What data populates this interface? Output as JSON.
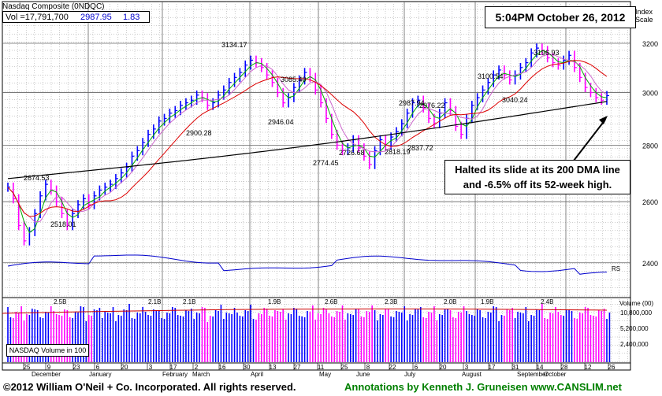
{
  "header": {
    "name": "Nasdaq Composite",
    "symbol": "(0NDQC)",
    "vol_label": "Vol =17,791,700",
    "price": "2987.95",
    "change": "1.83"
  },
  "timestamp": "5:04PM October 26, 2012",
  "index_scale_label": "Index\nScale",
  "annotation_note": "Halted its slide at its 200 DMA line and -6.5% off its 52-week high.",
  "rs_label": "RS",
  "volume_box_label": "NASDAQ Volume in 100",
  "volume_axis_title": "Volume (00)",
  "footer": {
    "copyright": "©2012 William O'Neil + Co. Incorporated. All rights reserved.",
    "annotations": "Annotations by Kenneth J. Gruneisen www.CANSLIM.net"
  },
  "colors": {
    "up": "#0000ff",
    "down": "#ff00ff",
    "ma10": "#00aa00",
    "ma20": "#cc66cc",
    "ma50": "#dd0000",
    "ma200": "#000000",
    "rs": "#0000cc",
    "volAvg": "#cc0000",
    "grid": "#999999"
  },
  "chart_data": {
    "type": "line",
    "title": "Nasdaq Composite (0NDQC)",
    "price_axis": {
      "scale": "log",
      "ticks": [
        2400,
        2600,
        2800,
        3000,
        3200
      ],
      "range": [
        2300,
        3380
      ]
    },
    "volume_axis": {
      "ticks": [
        "10,800,000",
        "5,200,000",
        "2,400,000"
      ],
      "max_mid": "10,800,000"
    },
    "x_tick_labels": [
      "25",
      "9",
      "23",
      "6",
      "20",
      "3",
      "17",
      "2",
      "16",
      "30",
      "13",
      "27",
      "11",
      "25",
      "8",
      "22",
      "6",
      "20",
      "3",
      "17",
      "31",
      "14",
      "28",
      "12",
      "26"
    ],
    "month_labels": [
      "December",
      "January",
      "February",
      "March",
      "April",
      "May",
      "June",
      "July",
      "August",
      "September",
      "October"
    ],
    "price_labels": [
      {
        "text": "2674.53",
        "value": 2674.53
      },
      {
        "text": "2518.01",
        "value": 2518.01
      },
      {
        "text": "2900.28",
        "value": 2900.28
      },
      {
        "text": "3134.17",
        "value": 3134.17
      },
      {
        "text": "3085.40",
        "value": 3085.4
      },
      {
        "text": "2946.04",
        "value": 2946.04
      },
      {
        "text": "2774.45",
        "value": 2774.45
      },
      {
        "text": "2726.68",
        "value": 2726.68
      },
      {
        "text": "2818.19",
        "value": 2818.19
      },
      {
        "text": "2987.94",
        "value": 2987.94
      },
      {
        "text": "2976.22",
        "value": 2976.22
      },
      {
        "text": "2837.72",
        "value": 2837.72
      },
      {
        "text": "3100.54",
        "value": 3100.54
      },
      {
        "text": "3040.24",
        "value": 3040.24
      },
      {
        "text": "3196.93",
        "value": 3196.93
      }
    ],
    "volume_labels": [
      "2.5B",
      "2.1B",
      "2.1B",
      "1.9B",
      "2.6B",
      "2.3B",
      "2.0B",
      "1.9B",
      "2.4B"
    ],
    "close_series": [
      2650,
      2610,
      2520,
      2470,
      2500,
      2560,
      2620,
      2660,
      2640,
      2600,
      2560,
      2520,
      2560,
      2590,
      2610,
      2590,
      2620,
      2640,
      2650,
      2660,
      2680,
      2700,
      2720,
      2760,
      2780,
      2810,
      2840,
      2860,
      2890,
      2900,
      2920,
      2930,
      2950,
      2960,
      2970,
      2990,
      2980,
      2950,
      2960,
      2990,
      3010,
      3040,
      3060,
      3080,
      3110,
      3130,
      3120,
      3100,
      3070,
      3040,
      3000,
      2960,
      2980,
      3020,
      3050,
      3080,
      3060,
      3010,
      2960,
      2900,
      2840,
      2800,
      2780,
      2790,
      2820,
      2790,
      2760,
      2730,
      2780,
      2820,
      2800,
      2830,
      2850,
      2880,
      2920,
      2960,
      2970,
      2940,
      2900,
      2880,
      2920,
      2960,
      2930,
      2870,
      2840,
      2900,
      2950,
      2980,
      3010,
      3040,
      3070,
      3090,
      3070,
      3050,
      3070,
      3100,
      3120,
      3160,
      3180,
      3170,
      3140,
      3120,
      3110,
      3130,
      3150,
      3100,
      3060,
      3020,
      3000,
      2980,
      2970,
      2988
    ],
    "series": [
      {
        "name": "10-day MA",
        "color": "#00aa00"
      },
      {
        "name": "20-day MA",
        "color": "#cc66cc"
      },
      {
        "name": "50-day MA",
        "color": "#dd0000"
      },
      {
        "name": "200-day MA",
        "color": "#000000"
      }
    ]
  }
}
